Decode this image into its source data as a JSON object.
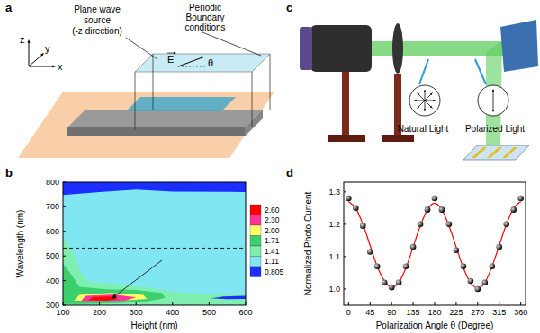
{
  "figure": {
    "panel_labels": [
      "a",
      "b",
      "c",
      "d"
    ]
  },
  "diagrams": {
    "simulation_setup": {
      "source_label": [
        "Plane wave",
        "source",
        "(-z direction)"
      ],
      "boundary_label": [
        "Periodic",
        "Boundary",
        "conditions"
      ],
      "field_label": "E",
      "angle_label": "θ",
      "axes": [
        "z",
        "y",
        "x"
      ]
    },
    "optical_setup": {
      "labels": [
        "Natural Light",
        "Polarized Light"
      ]
    }
  },
  "chart_data": [
    {
      "type": "contour",
      "x_label": "Height (nm)",
      "y_label": "Wavelength (nm)",
      "xlim": [
        100,
        600
      ],
      "ylim": [
        300,
        800
      ],
      "xticks": [
        100,
        200,
        300,
        400,
        500,
        600
      ],
      "yticks": [
        300,
        400,
        500,
        600,
        700,
        800
      ],
      "regions": [
        {
          "level": 1.11,
          "points": [
            [
              100,
              300
            ],
            [
              600,
              300
            ],
            [
              600,
              800
            ],
            [
              100,
              800
            ]
          ]
        },
        {
          "level": 0.805,
          "points": [
            [
              100,
              800
            ],
            [
              600,
              800
            ],
            [
              600,
              760
            ],
            [
              400,
              762
            ],
            [
              300,
              770
            ],
            [
              200,
              760
            ],
            [
              130,
              752
            ],
            [
              100,
              748
            ]
          ]
        },
        {
          "level": 1.41,
          "points": [
            [
              100,
              300
            ],
            [
              100,
              580
            ],
            [
              125,
              520
            ],
            [
              150,
              430
            ],
            [
              170,
              395
            ],
            [
              250,
              385
            ],
            [
              330,
              372
            ],
            [
              400,
              355
            ],
            [
              500,
              345
            ],
            [
              600,
              345
            ],
            [
              600,
              300
            ]
          ]
        },
        {
          "level": 1.71,
          "points": [
            [
              100,
              305
            ],
            [
              100,
              470
            ],
            [
              125,
              420
            ],
            [
              145,
              375
            ],
            [
              220,
              365
            ],
            [
              300,
              362
            ],
            [
              370,
              350
            ],
            [
              380,
              330
            ],
            [
              330,
              315
            ],
            [
              250,
              308
            ],
            [
              150,
              305
            ]
          ]
        },
        {
          "level": 2,
          "points": [
            [
              130,
              318
            ],
            [
              145,
              342
            ],
            [
              230,
              350
            ],
            [
              320,
              342
            ],
            [
              330,
              326
            ],
            [
              260,
              318
            ]
          ]
        },
        {
          "level": 2.3,
          "points": [
            [
              150,
              316
            ],
            [
              162,
              338
            ],
            [
              240,
              344
            ],
            [
              300,
              332
            ],
            [
              270,
              318
            ]
          ]
        },
        {
          "level": 2.6,
          "points": [
            [
              170,
              320
            ],
            [
              182,
              334
            ],
            [
              230,
              336
            ],
            [
              250,
              325
            ],
            [
              220,
              318
            ]
          ]
        },
        {
          "level": 0.805,
          "points": [
            [
              505,
              328
            ],
            [
              540,
              336
            ],
            [
              600,
              338
            ],
            [
              600,
              326
            ],
            [
              550,
              325
            ]
          ]
        }
      ],
      "colorbar": {
        "levels": [
          {
            "value": 2.6,
            "label": "2.60"
          },
          {
            "value": 2.3,
            "label": "2.30"
          },
          {
            "value": 2,
            "label": "2.00"
          },
          1.71,
          1.41,
          1.11,
          0.805
        ],
        "colors": [
          "#ff0000",
          "#ff3399",
          "#ffff66",
          "#3ccf6e",
          "#7fefb0",
          "#80e6f2",
          "#1a2eff"
        ]
      },
      "reference_line": 532
    },
    {
      "type": "scatter",
      "x_label": "Polarization Angle θ (Degree)",
      "y_label": "Normalized Photo Current",
      "x": [
        0,
        15,
        30,
        45,
        60,
        75,
        90,
        105,
        120,
        135,
        150,
        165,
        180,
        195,
        210,
        225,
        240,
        255,
        270,
        285,
        300,
        315,
        330,
        345,
        360
      ],
      "series": [
        {
          "type": "scatter",
          "color": "#000000",
          "marker": "circle",
          "values": [
            1.28,
            1.25,
            1.195,
            1.115,
            1.07,
            1.02,
            1.005,
            1.02,
            1.07,
            1.13,
            1.2,
            1.245,
            1.28,
            1.245,
            1.2,
            1.12,
            1.07,
            1.025,
            1.0,
            1.02,
            1.07,
            1.13,
            1.2,
            1.245,
            1.28
          ]
        },
        {
          "type": "line",
          "color": "#ff0000",
          "line_style": "solid",
          "values": [
            1.27,
            1.25,
            1.2,
            1.135,
            1.07,
            1.025,
            1.005,
            1.02,
            1.065,
            1.13,
            1.195,
            1.245,
            1.265,
            1.245,
            1.195,
            1.13,
            1.065,
            1.02,
            1.003,
            1.02,
            1.07,
            1.135,
            1.2,
            1.25,
            1.27
          ]
        }
      ],
      "xlim": [
        -10,
        370
      ],
      "ylim": [
        0.95,
        1.33
      ],
      "xticks": [
        0,
        45,
        90,
        135,
        180,
        225,
        270,
        315,
        360
      ],
      "yticks": [
        {
          "value": 1,
          "label": "1.0"
        },
        {
          "value": 1.1,
          "label": "1.1"
        },
        {
          "value": 1.2,
          "label": "1.2"
        },
        {
          "value": 1.3,
          "label": "1.3"
        }
      ]
    }
  ]
}
